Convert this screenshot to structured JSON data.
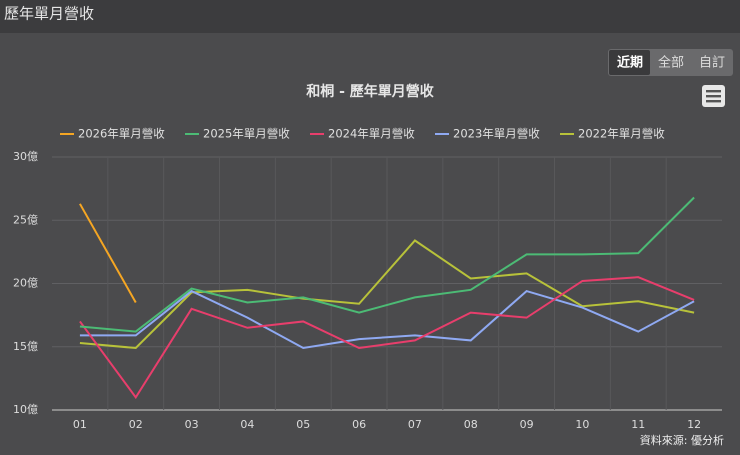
{
  "header": {
    "title": "歷年單月營收"
  },
  "buttons": [
    "近期",
    "全部",
    "自訂"
  ],
  "chart_data": {
    "type": "line",
    "title": "和桐 - 歷年單月營收",
    "credit": "資料來源: 優分析",
    "categories": [
      "01",
      "02",
      "03",
      "04",
      "05",
      "06",
      "07",
      "08",
      "09",
      "10",
      "11",
      "12"
    ],
    "ylim": [
      10,
      30
    ],
    "yticks": [
      {
        "value": 10,
        "label": "10億"
      },
      {
        "value": 15,
        "label": "15億"
      },
      {
        "value": 20,
        "label": "20億"
      },
      {
        "value": 25,
        "label": "25億"
      },
      {
        "value": 30,
        "label": "30億"
      }
    ],
    "grid": true,
    "legend": "top",
    "series": [
      {
        "name": "2026年單月營收",
        "color": "#f5a623",
        "values": [
          26.3,
          18.5,
          null,
          null,
          null,
          null,
          null,
          null,
          null,
          null,
          null,
          null
        ]
      },
      {
        "name": "2025年單月營收",
        "color": "#4cbb75",
        "values": [
          16.6,
          16.2,
          19.6,
          18.5,
          18.9,
          17.7,
          18.9,
          19.5,
          22.3,
          22.3,
          22.4,
          26.8
        ]
      },
      {
        "name": "2024年單月營收",
        "color": "#e83e6c",
        "values": [
          17.0,
          11.0,
          18.0,
          16.5,
          17.0,
          14.9,
          15.5,
          17.7,
          17.3,
          20.2,
          20.5,
          18.7
        ]
      },
      {
        "name": "2023年單月營收",
        "color": "#8fa9f2",
        "values": [
          15.9,
          15.9,
          19.4,
          17.3,
          14.9,
          15.6,
          15.9,
          15.5,
          19.4,
          18.1,
          16.2,
          18.6
        ]
      },
      {
        "name": "2022年單月營收",
        "color": "#b8c23a",
        "values": [
          15.3,
          14.9,
          19.3,
          19.5,
          18.8,
          18.4,
          23.4,
          20.4,
          20.8,
          18.2,
          18.6,
          17.7
        ]
      }
    ]
  }
}
